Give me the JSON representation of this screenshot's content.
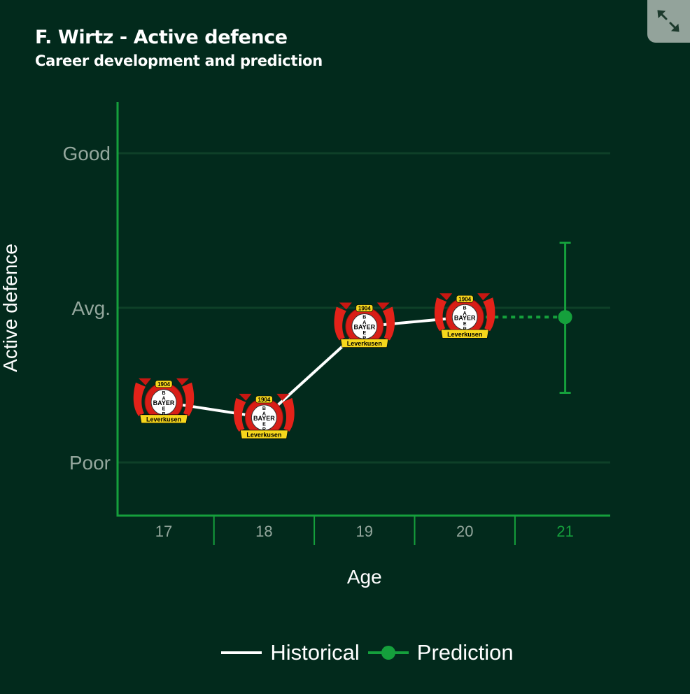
{
  "header": {
    "title": "F. Wirtz - Active defence",
    "subtitle": "Career development and prediction"
  },
  "expand_button": {
    "icon": "expand-arrows-icon"
  },
  "colors": {
    "background": "#022a1c",
    "axis": "#15a03c",
    "gridline": "#0e4028",
    "historical": "#ffffff",
    "prediction": "#15a03c",
    "tick_label": "#94a79d",
    "prediction_tick": "#15a03c",
    "button": "#93a39b"
  },
  "chart_data": {
    "type": "line",
    "title": "F. Wirtz - Active defence",
    "subtitle": "Career development and prediction",
    "xlabel": "Age",
    "ylabel": "Active defence",
    "categories": [
      "17",
      "18",
      "19",
      "20",
      "21"
    ],
    "y_tick_labels": [
      "Poor",
      "Avg.",
      "Good"
    ],
    "y_scale_note": "Poor = -1, Avg. = 0, Good = 1",
    "ylim": [
      -1.35,
      1.33
    ],
    "grid": true,
    "legend_position": "bottom-center",
    "series": [
      {
        "name": "Historical",
        "x": [
          17,
          18,
          19,
          20
        ],
        "values": [
          -0.61,
          -0.71,
          -0.12,
          -0.06
        ],
        "marker": "club-logo-bayer-leverkusen",
        "style": "solid"
      },
      {
        "name": "Prediction",
        "x": [
          20,
          21
        ],
        "values": [
          -0.06,
          -0.06
        ],
        "style": "dotted",
        "error_bar": {
          "x": 21,
          "low": -0.55,
          "high": 0.42
        }
      }
    ],
    "marker_logo": {
      "year": "1904",
      "name_vertical": "BAYER",
      "banner": "Leverkusen"
    }
  },
  "legend": {
    "historical_label": "Historical",
    "prediction_label": "Prediction"
  }
}
